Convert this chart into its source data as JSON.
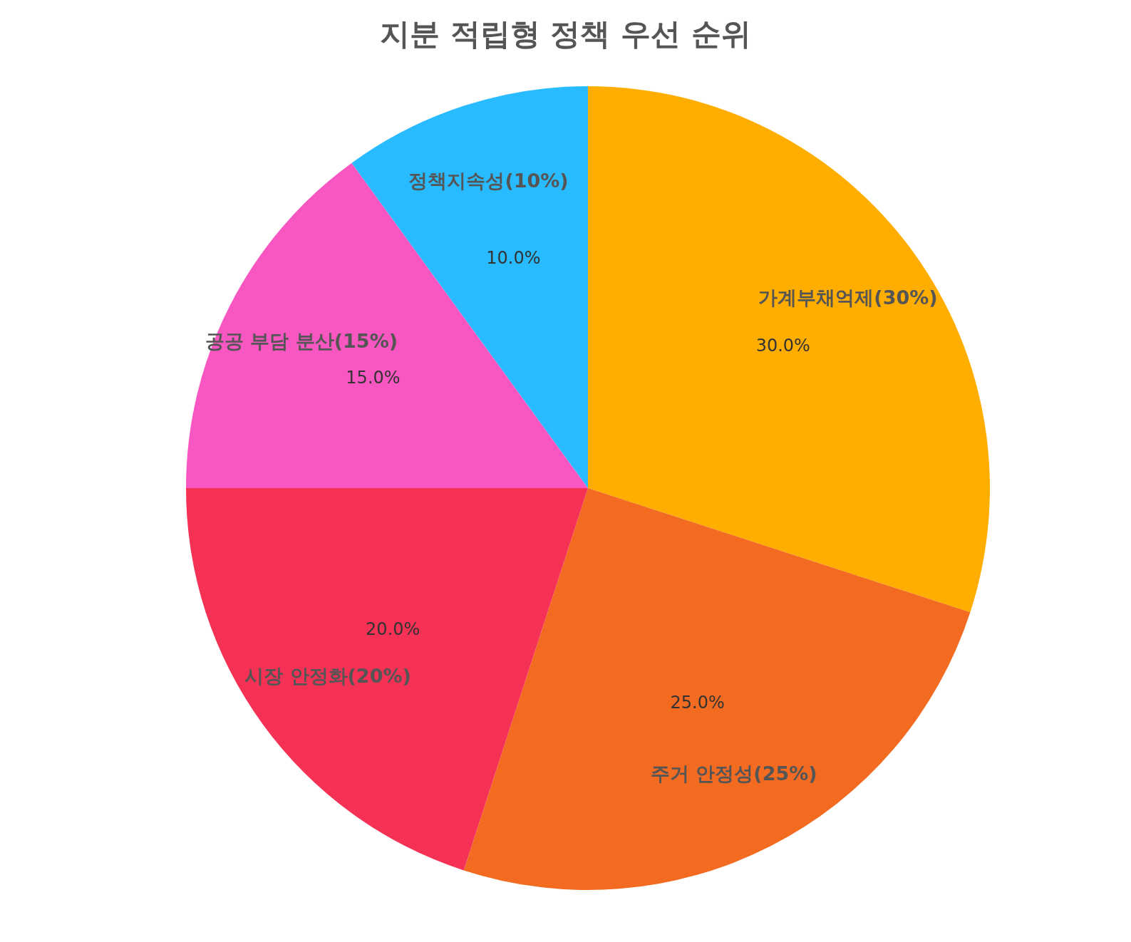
{
  "chart_data": {
    "type": "pie",
    "title": "지분 적립형 정책 우선 순위",
    "categories": [
      "가계부채억제(30%)",
      "주거 안정성(25%)",
      "시장 안정화(20%)",
      "공공 부담 분산(15%)",
      "정책지속성(10%)"
    ],
    "values": [
      30,
      25,
      20,
      15,
      10
    ],
    "colors": [
      "#ffae00",
      "#f26b21",
      "#f53155",
      "#f857c1",
      "#29bbff"
    ],
    "value_labels": [
      "30.0%",
      "25.0%",
      "20.0%",
      "15.0%",
      "10.0%"
    ]
  }
}
